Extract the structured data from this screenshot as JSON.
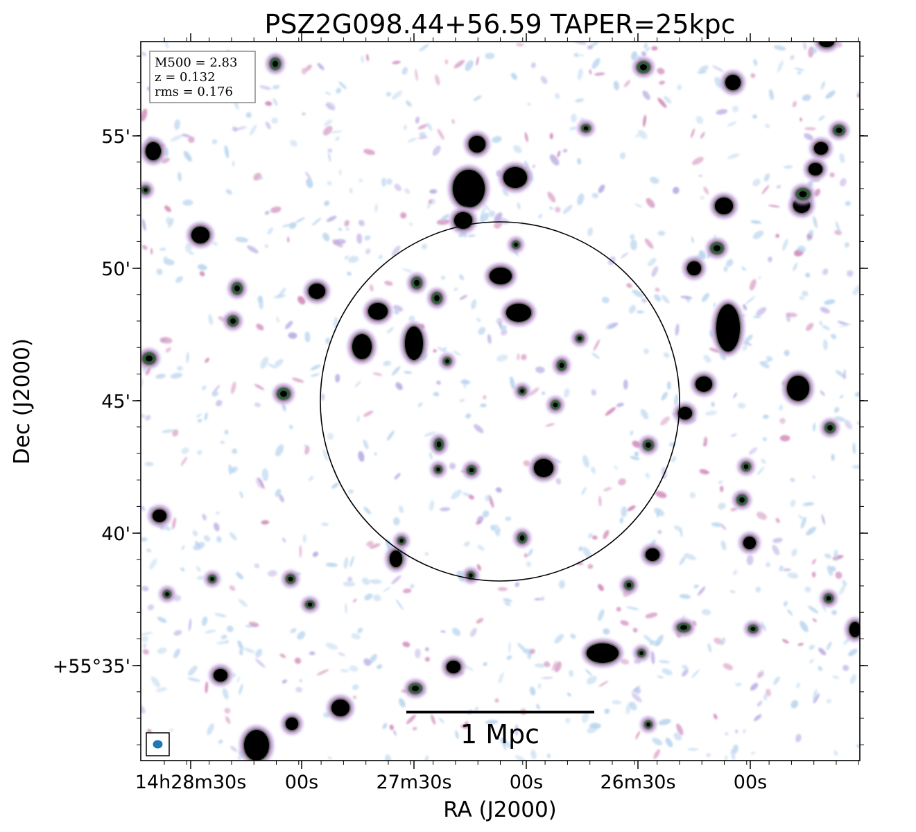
{
  "chart_data": {
    "type": "heatmap",
    "title": "PSZ2G098.44+56.59 TAPER=25kpc",
    "xlabel": "RA (J2000)",
    "ylabel": "Dec (J2000)",
    "x_ticks": [
      "14h28m30s",
      "00s",
      "27m30s",
      "00s",
      "26m30s",
      "00s"
    ],
    "y_ticks": [
      "55'",
      "50'",
      "45'",
      "40'",
      "+55°35'"
    ],
    "info_box": [
      "M500 = 2.83",
      "z = 0.132",
      "rms = 0.176"
    ],
    "scale_bar_label": "1 Mpc",
    "beam": "ellipse",
    "colors": {
      "strong": "#000000",
      "mid_green": "#2f5a3a",
      "pink": "#cf87b8",
      "lavender": "#b7a8e2",
      "light_blue": "#b8d4ee",
      "beam_fill": "#1f77b4"
    }
  }
}
